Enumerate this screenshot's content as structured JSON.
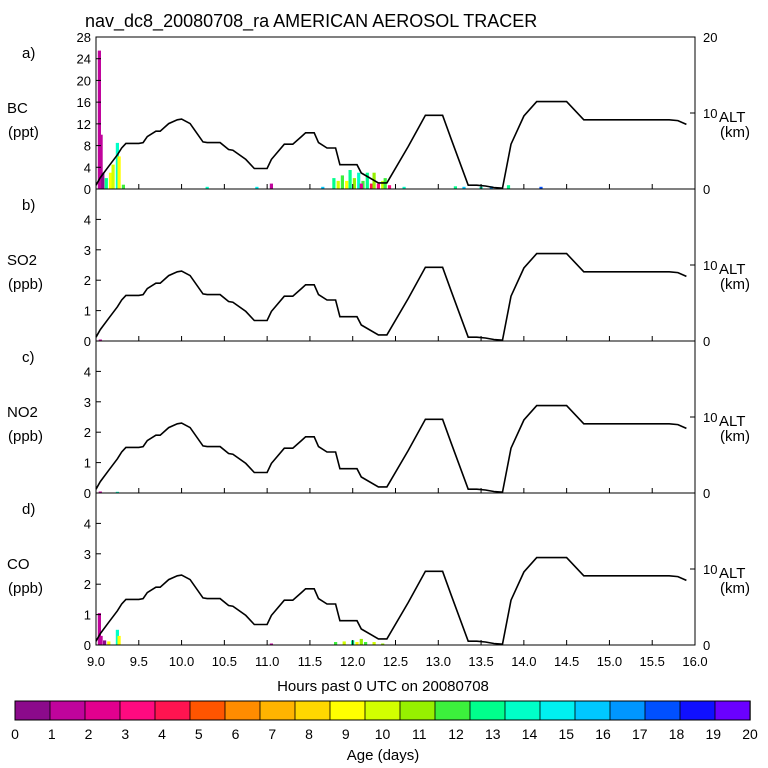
{
  "title": "nav_dc8_20080708_ra AMERICAN AEROSOL TRACER",
  "xlabel": "Hours past 0 UTC on 20080708",
  "colorbar": {
    "label": "Age (days)",
    "ticks": [
      "0",
      "1",
      "2",
      "3",
      "4",
      "5",
      "6",
      "7",
      "8",
      "9",
      "10",
      "11",
      "12",
      "13",
      "14",
      "15",
      "16",
      "17",
      "18",
      "19",
      "20"
    ],
    "colors": [
      "#8b0a8b",
      "#c0049c",
      "#e2008e",
      "#ff0a80",
      "#ff1450",
      "#ff5500",
      "#ff8c00",
      "#ffb400",
      "#ffd700",
      "#ffff00",
      "#d2ff00",
      "#96f000",
      "#3cf03c",
      "#00ff8c",
      "#00ffc8",
      "#00f0f0",
      "#00c8ff",
      "#0096ff",
      "#0050ff",
      "#1010ff",
      "#6a00ff"
    ]
  },
  "chart_data": {
    "type": "line",
    "x_range": [
      9.0,
      16.0
    ],
    "x_ticks": [
      "9.0",
      "9.5",
      "10.0",
      "10.5",
      "11.0",
      "11.5",
      "12.0",
      "12.5",
      "13.0",
      "13.5",
      "14.0",
      "14.5",
      "15.0",
      "15.5",
      "16.0"
    ],
    "altitude_km": {
      "x": [
        9.0,
        9.05,
        9.15,
        9.25,
        9.3,
        9.35,
        9.5,
        9.55,
        9.6,
        9.7,
        9.75,
        9.85,
        9.95,
        10.0,
        10.1,
        10.25,
        10.3,
        10.45,
        10.55,
        10.6,
        10.75,
        10.85,
        11.0,
        11.05,
        11.2,
        11.3,
        11.4,
        11.45,
        11.55,
        11.6,
        11.7,
        11.8,
        11.85,
        12.05,
        12.1,
        12.3,
        12.4,
        12.65,
        12.85,
        13.05,
        13.15,
        13.35,
        13.45,
        13.55,
        13.65,
        13.75,
        13.85,
        14.0,
        14.15,
        14.5,
        14.7,
        14.9,
        15.3,
        15.7,
        15.8,
        15.9
      ],
      "y": [
        0.5,
        1.5,
        3.0,
        4.5,
        5.4,
        6.0,
        6.0,
        6.1,
        6.9,
        7.6,
        7.6,
        8.6,
        9.1,
        9.2,
        8.6,
        6.2,
        6.1,
        6.1,
        5.2,
        5.1,
        3.9,
        2.7,
        2.7,
        3.9,
        5.9,
        5.9,
        6.9,
        7.4,
        7.4,
        6.1,
        5.4,
        5.4,
        3.2,
        3.2,
        2.1,
        0.8,
        0.8,
        5.6,
        9.7,
        9.7,
        6.6,
        0.5,
        0.5,
        0.4,
        0.2,
        0.1,
        5.9,
        9.6,
        11.5,
        11.5,
        9.1,
        9.1,
        9.1,
        9.1,
        9.0,
        8.5
      ],
      "label": "ALT",
      "unit": "(km)",
      "ylim": [
        0,
        20
      ],
      "ticks": [
        "0",
        "10",
        "20"
      ]
    },
    "panels": [
      {
        "letter": "a)",
        "species": "BC",
        "unit": "(ppt)",
        "ylim": [
          0,
          28
        ],
        "ticks": [
          "0",
          "4",
          "8",
          "12",
          "16",
          "20",
          "24",
          "28"
        ],
        "bars": [
          {
            "x": 9.04,
            "value": 25.5,
            "age": 1
          },
          {
            "x": 9.06,
            "value": 10.0,
            "age": 1
          },
          {
            "x": 9.08,
            "value": 3.0,
            "age": 0
          },
          {
            "x": 9.12,
            "value": 2.0,
            "age": 13
          },
          {
            "x": 9.17,
            "value": 3.0,
            "age": 9
          },
          {
            "x": 9.2,
            "value": 4.5,
            "age": 10
          },
          {
            "x": 9.25,
            "value": 8.5,
            "age": 14
          },
          {
            "x": 9.27,
            "value": 6.0,
            "age": 9
          },
          {
            "x": 9.32,
            "value": 0.8,
            "age": 12
          },
          {
            "x": 10.3,
            "value": 0.4,
            "age": 14
          },
          {
            "x": 10.88,
            "value": 0.4,
            "age": 15
          },
          {
            "x": 11.05,
            "value": 1.0,
            "age": 1
          },
          {
            "x": 11.65,
            "value": 0.4,
            "age": 16
          },
          {
            "x": 11.78,
            "value": 2.0,
            "age": 13
          },
          {
            "x": 11.83,
            "value": 1.5,
            "age": 10
          },
          {
            "x": 11.88,
            "value": 2.5,
            "age": 12
          },
          {
            "x": 11.93,
            "value": 1.5,
            "age": 9
          },
          {
            "x": 11.97,
            "value": 3.5,
            "age": 13
          },
          {
            "x": 12.02,
            "value": 2.0,
            "age": 11
          },
          {
            "x": 12.07,
            "value": 3.0,
            "age": 14
          },
          {
            "x": 12.12,
            "value": 1.5,
            "age": 12
          },
          {
            "x": 12.17,
            "value": 3.0,
            "age": 13
          },
          {
            "x": 12.1,
            "value": 1.0,
            "age": 2
          },
          {
            "x": 12.22,
            "value": 1.0,
            "age": 4
          },
          {
            "x": 12.25,
            "value": 3.0,
            "age": 11
          },
          {
            "x": 12.3,
            "value": 1.0,
            "age": 3
          },
          {
            "x": 12.35,
            "value": 1.5,
            "age": 10
          },
          {
            "x": 12.38,
            "value": 2.0,
            "age": 12
          },
          {
            "x": 12.43,
            "value": 0.7,
            "age": 3
          },
          {
            "x": 12.6,
            "value": 0.4,
            "age": 14
          },
          {
            "x": 13.2,
            "value": 0.5,
            "age": 13
          },
          {
            "x": 13.3,
            "value": 0.4,
            "age": 16
          },
          {
            "x": 13.5,
            "value": 0.4,
            "age": 14
          },
          {
            "x": 13.62,
            "value": 0.5,
            "age": 17
          },
          {
            "x": 13.82,
            "value": 0.7,
            "age": 13
          },
          {
            "x": 14.2,
            "value": 0.4,
            "age": 18
          }
        ]
      },
      {
        "letter": "b)",
        "species": "SO2",
        "unit": "(ppb)",
        "ylim": [
          0,
          5
        ],
        "ticks": [
          "0",
          "1",
          "2",
          "3",
          "4"
        ],
        "bars": [
          {
            "x": 9.05,
            "value": 0.05,
            "age": 1
          }
        ]
      },
      {
        "letter": "c)",
        "species": "NO2",
        "unit": "(ppb)",
        "ylim": [
          0,
          5
        ],
        "ticks": [
          "0",
          "1",
          "2",
          "3",
          "4"
        ],
        "bars": [
          {
            "x": 9.05,
            "value": 0.05,
            "age": 1
          },
          {
            "x": 9.25,
            "value": 0.04,
            "age": 14
          }
        ]
      },
      {
        "letter": "d)",
        "species": "CO",
        "unit": "(ppb)",
        "ylim": [
          0,
          5
        ],
        "ticks": [
          "0",
          "1",
          "2",
          "3",
          "4"
        ],
        "bars": [
          {
            "x": 9.04,
            "value": 1.05,
            "age": 1
          },
          {
            "x": 9.06,
            "value": 0.3,
            "age": 1
          },
          {
            "x": 9.1,
            "value": 0.15,
            "age": 0
          },
          {
            "x": 9.15,
            "value": 0.12,
            "age": 9
          },
          {
            "x": 9.25,
            "value": 0.5,
            "age": 14
          },
          {
            "x": 9.27,
            "value": 0.3,
            "age": 9
          },
          {
            "x": 11.05,
            "value": 0.05,
            "age": 1
          },
          {
            "x": 11.8,
            "value": 0.1,
            "age": 12
          },
          {
            "x": 11.9,
            "value": 0.12,
            "age": 10
          },
          {
            "x": 12.0,
            "value": 0.15,
            "age": 13
          },
          {
            "x": 12.05,
            "value": 0.1,
            "age": 9
          },
          {
            "x": 12.1,
            "value": 0.2,
            "age": 11
          },
          {
            "x": 12.15,
            "value": 0.1,
            "age": 12
          },
          {
            "x": 12.25,
            "value": 0.1,
            "age": 10
          },
          {
            "x": 12.35,
            "value": 0.05,
            "age": 11
          }
        ]
      }
    ]
  }
}
